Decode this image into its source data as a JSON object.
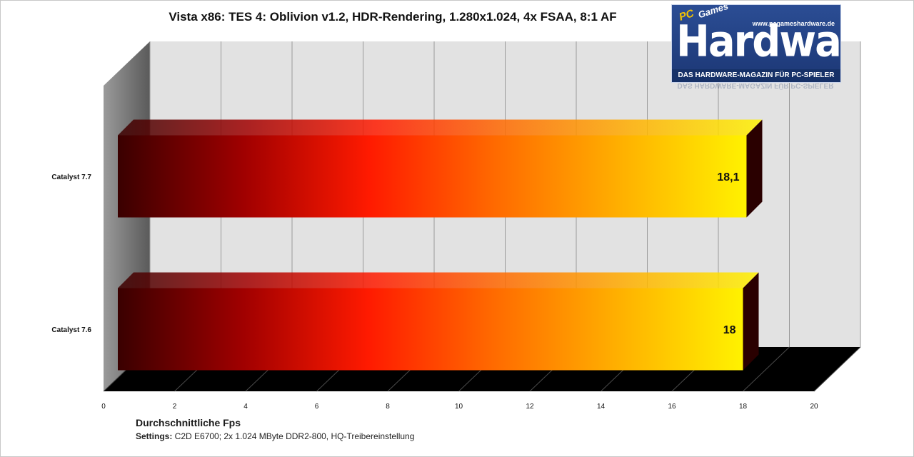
{
  "chart_data": {
    "type": "bar",
    "orientation": "horizontal",
    "style": "3d",
    "title": "Vista x86: TES 4: Oblivion v1.2, HDR-Rendering, 1.280x1.024, 4x FSAA, 8:1 AF",
    "xlabel": "Durchschnittliche Fps",
    "ylabel": "",
    "xlim": [
      0,
      20
    ],
    "xticks": [
      0,
      2,
      4,
      6,
      8,
      10,
      12,
      14,
      16,
      18,
      20
    ],
    "grid": true,
    "categories": [
      "Catalyst 7.7",
      "Catalyst 7.6"
    ],
    "values": [
      18.1,
      18
    ],
    "value_labels": [
      "18,1",
      "18"
    ],
    "bar_gradient": [
      "#3a0000",
      "#a00000",
      "#ff1a00",
      "#ff6a00",
      "#ffb000",
      "#fff200"
    ],
    "wall_color": "#e2e2e2",
    "floor_color": "#000000",
    "side_wall_color": "#6a6a6a"
  },
  "footer": {
    "settings_label": "Settings:",
    "settings_text": " C2D E6700; 2x 1.024 MByte DDR2-800, HQ-Treibereinstellung"
  },
  "logo": {
    "pc": "PC",
    "games": "Games",
    "url": "www.pcgameshardware.de",
    "name": "Hardware",
    "tagline": "DAS HARDWARE-MAGAZIN FÜR PC-SPIELER"
  }
}
